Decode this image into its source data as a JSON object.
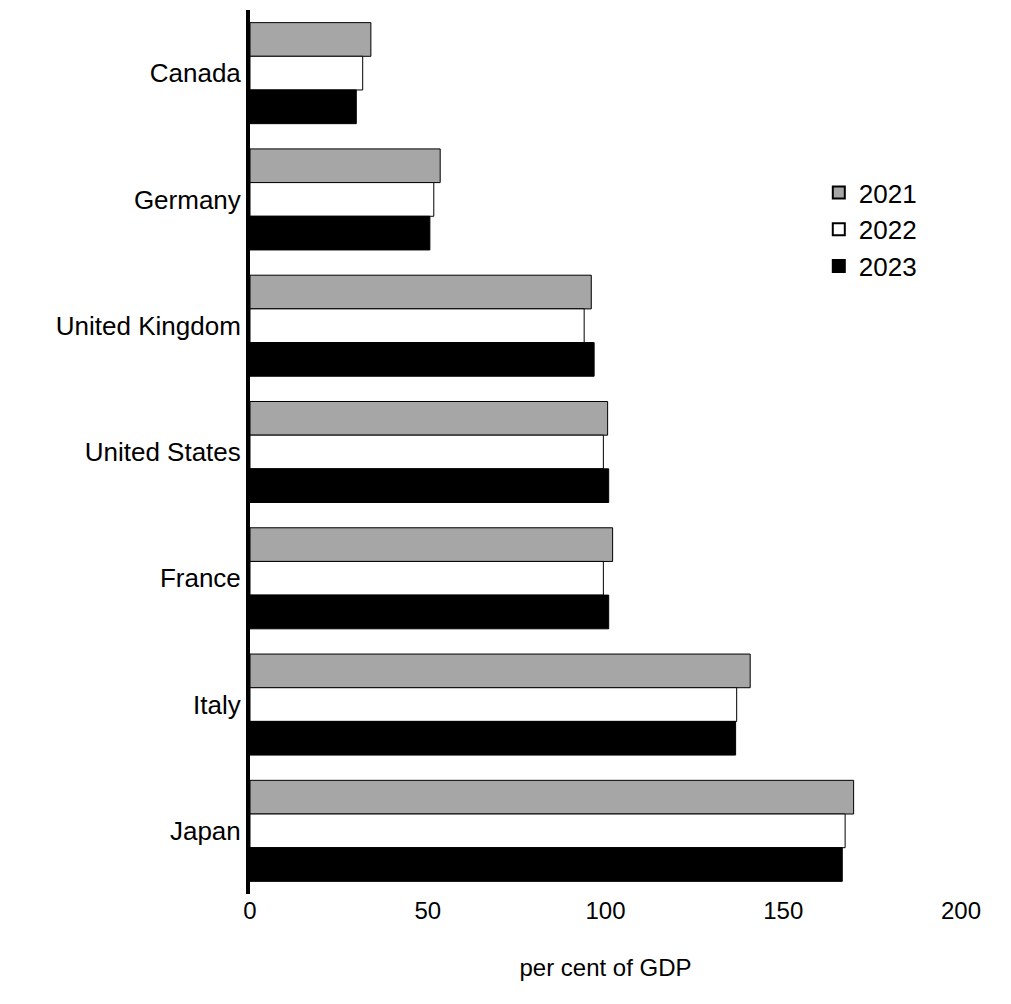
{
  "chart_data": {
    "type": "bar",
    "orientation": "horizontal",
    "x_label": "per cent of GDP",
    "categories": [
      "Canada",
      "Germany",
      "United Kingdom",
      "United States",
      "France",
      "Italy",
      "Japan"
    ],
    "series": [
      {
        "name": "2021",
        "color": "#a6a6a6",
        "values": [
          34.0,
          53.5,
          96.0,
          100.6,
          102.0,
          140.7,
          169.8
        ]
      },
      {
        "name": "2022",
        "color": "#ffffff",
        "values": [
          31.7,
          51.7,
          94.0,
          99.4,
          99.4,
          136.9,
          167.4
        ]
      },
      {
        "name": "2023",
        "color": "#000000",
        "values": [
          29.9,
          50.6,
          96.8,
          100.9,
          100.9,
          136.6,
          166.6
        ]
      }
    ],
    "xlim": [
      0,
      200
    ],
    "xticks": [
      0,
      50,
      100,
      150,
      200
    ],
    "grid": false,
    "legend": "right"
  }
}
